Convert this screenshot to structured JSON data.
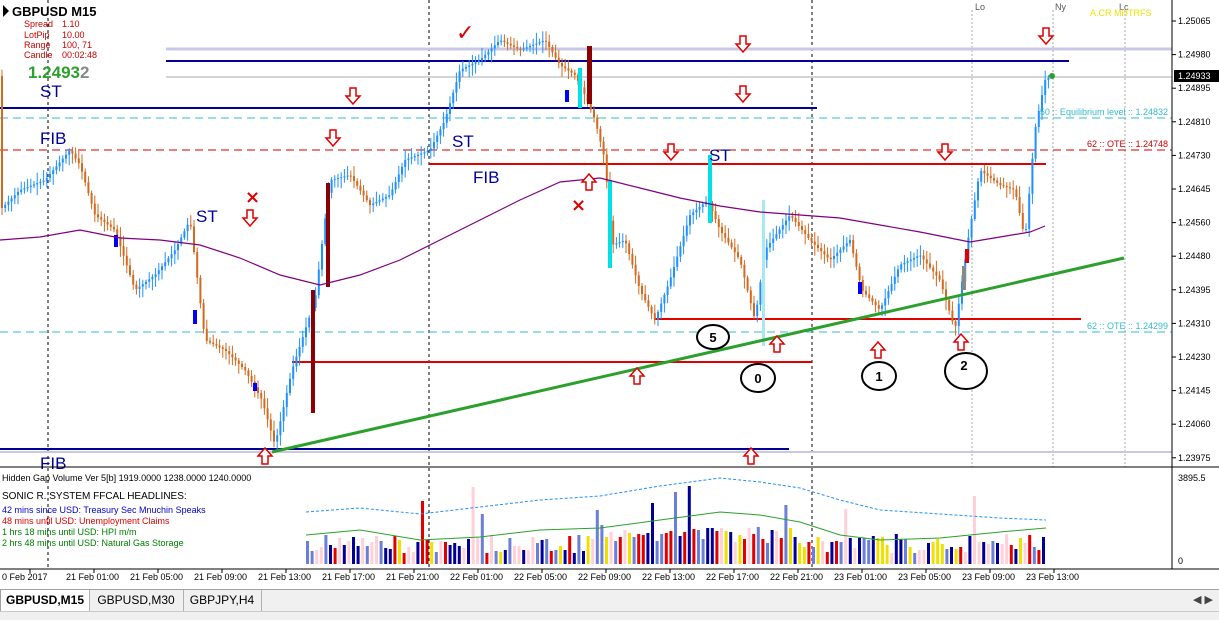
{
  "chart_header": {
    "symbol_tf": "GBPUSD   M15",
    "info_rows": [
      {
        "label": "Spread",
        "value": "1.10"
      },
      {
        "label": "LotPip",
        "value": "10.00"
      },
      {
        "label": "Range",
        "value": "100, 71"
      },
      {
        "label": "Candle",
        "value": "00:02:48"
      }
    ],
    "price_main": "1.2493",
    "price_last_digit": "2"
  },
  "top_labels": {
    "lo": "Lo",
    "ny": "Ny",
    "lc": "Lc",
    "author": "A.CR MHTRFS"
  },
  "price_axis": {
    "ticks": [
      "1.25065",
      "1.24980",
      "1.24895",
      "1.24810",
      "1.24730",
      "1.24645",
      "1.24560",
      "1.24480",
      "1.24395",
      "1.24310",
      "1.24230",
      "1.24145",
      "1.24060",
      "1.23975"
    ],
    "current": "1.24933",
    "volume_max": "3895.5",
    "volume_zero": "0"
  },
  "time_axis": [
    "0 Feb 2017",
    "21 Feb 01:00",
    "21 Feb 05:00",
    "21 Feb 09:00",
    "21 Feb 13:00",
    "21 Feb 17:00",
    "21 Feb 21:00",
    "22 Feb 01:00",
    "22 Feb 05:00",
    "22 Feb 09:00",
    "22 Feb 13:00",
    "22 Feb 17:00",
    "22 Feb 21:00",
    "23 Feb 01:00",
    "23 Feb 05:00",
    "23 Feb 09:00",
    "23 Feb 13:00"
  ],
  "annotations": {
    "st": "ST",
    "fib": "FIB",
    "equilibrium": "50 :: Equilibrium level :: 1.24832",
    "ote_upper": "62 :: OTE :: 1.24748",
    "ote_lower": "62 :: OTE :: 1.24299",
    "count_labels": [
      "5",
      "0",
      "1",
      "2"
    ]
  },
  "indicator": {
    "title": "Hidden Gap Volume Ver 5[b] 1919.0000 1238.0000 1240.0000",
    "headline_title": "SONIC R. SYSTEM  FFCAL HEADLINES:",
    "headlines": [
      {
        "text": "42 mins since USD: Treasury Sec Mnuchin Speaks",
        "color": "#0000cc"
      },
      {
        "text": "48 mins until USD: Unemployment Claims",
        "color": "#e00000"
      },
      {
        "text": "1 hrs 18 mins until USD: HPI m/m",
        "color": "#008000"
      },
      {
        "text": "2 hrs 48 mins until USD: Natural Gas Storage",
        "color": "#008000"
      }
    ]
  },
  "tabs": [
    "GBPUSD,M15",
    "GBPUSD,M30",
    "GBPJPY,H4"
  ],
  "colors": {
    "bull": "#1e90ff",
    "bear": "#d2691e",
    "fib_blue": "#000099",
    "level_red": "#e00000",
    "trend_green": "#2ca02c",
    "ma_purple": "#800080",
    "cyan": "#33bbcc"
  }
}
